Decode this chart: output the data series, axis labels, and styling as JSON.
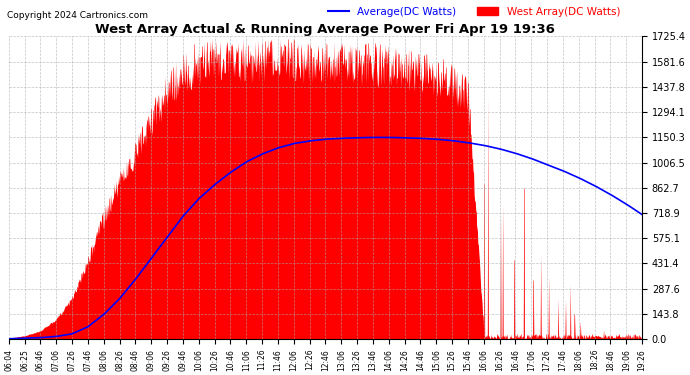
{
  "title": "West Array Actual & Running Average Power Fri Apr 19 19:36",
  "copyright": "Copyright 2024 Cartronics.com",
  "legend_avg": "Average(DC Watts)",
  "legend_west": "West Array(DC Watts)",
  "ymax": 1725.4,
  "yticks": [
    0.0,
    143.8,
    287.6,
    431.4,
    575.1,
    718.9,
    862.7,
    1006.5,
    1150.3,
    1294.1,
    1437.8,
    1581.6,
    1725.4
  ],
  "bg_color": "#ffffff",
  "plot_bg_color": "#ffffff",
  "grid_color": "#aaaaaa",
  "west_color": "#ff0000",
  "avg_color": "#0000ff",
  "title_color": "#000000",
  "copyright_color": "#000000",
  "figsize": [
    6.9,
    3.75
  ],
  "dpi": 100,
  "times_str": [
    "06:04",
    "06:25",
    "06:46",
    "07:06",
    "07:26",
    "07:46",
    "08:06",
    "08:26",
    "08:46",
    "09:06",
    "09:26",
    "09:46",
    "10:06",
    "10:26",
    "10:46",
    "11:06",
    "11:26",
    "11:46",
    "12:06",
    "12:26",
    "12:46",
    "13:06",
    "13:26",
    "13:46",
    "14:06",
    "14:26",
    "14:46",
    "15:06",
    "15:26",
    "15:46",
    "16:06",
    "16:26",
    "16:46",
    "17:06",
    "17:26",
    "17:46",
    "18:06",
    "18:26",
    "18:46",
    "19:06",
    "19:26"
  ],
  "west_envelope": [
    5,
    20,
    50,
    120,
    250,
    480,
    750,
    980,
    1150,
    1350,
    1520,
    1640,
    1700,
    1720,
    1715,
    1720,
    1710,
    1715,
    1720,
    1710,
    1705,
    1700,
    1695,
    1690,
    1680,
    1670,
    1650,
    1620,
    1580,
    1520,
    50,
    50,
    50,
    50,
    50,
    50,
    50,
    30,
    20,
    10,
    5
  ],
  "avg_line": [
    2,
    5,
    8,
    15,
    30,
    70,
    140,
    230,
    340,
    460,
    580,
    700,
    800,
    880,
    950,
    1010,
    1055,
    1090,
    1115,
    1130,
    1140,
    1145,
    1148,
    1150,
    1150,
    1148,
    1145,
    1140,
    1132,
    1120,
    1105,
    1085,
    1060,
    1030,
    995,
    960,
    920,
    875,
    825,
    770,
    710
  ]
}
